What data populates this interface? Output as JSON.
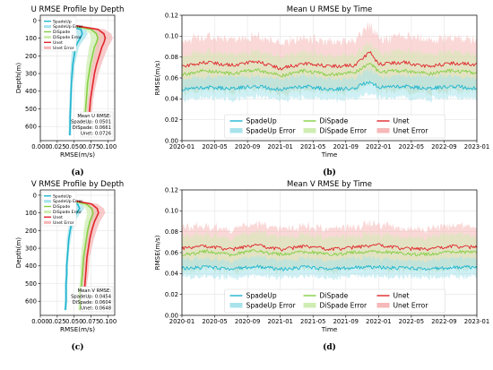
{
  "colors": {
    "SpadeUp": "#1fb5cf",
    "DiSpade": "#86cf45",
    "Unet": "#e0262c",
    "SpadeUp_band": "#a8e3ec",
    "DiSpade_band": "#cfedb3",
    "Unet_band": "#f6b8b8"
  },
  "chart_data": [
    {
      "id": "a",
      "panel_label": "(a)",
      "type": "line",
      "title": "U RMSE Profile by Depth",
      "xlabel": "RMSE(m/s)",
      "ylabel": "Depth(m)",
      "xlim": [
        0.0,
        0.11
      ],
      "ylim": [
        680,
        -30
      ],
      "xticks": [
        "0.000",
        "0.025",
        "0.050",
        "0.075",
        "0.100"
      ],
      "yticks": [
        "0",
        "100",
        "200",
        "300",
        "400",
        "500",
        "600"
      ],
      "grid": true,
      "legend": "upper-left",
      "legend_entries": [
        "SpadeUp",
        "SpadeUp Error",
        "DiSpade",
        "DiSpade Error",
        "Unet",
        "Unet Error"
      ],
      "annotation": [
        "Mean U RMSE:",
        "SpadeUp: 0.0501",
        "DiSpade: 0.0661",
        "Unet: 0.0726"
      ],
      "depth": [
        0,
        25,
        50,
        75,
        100,
        125,
        150,
        200,
        250,
        300,
        350,
        400,
        450,
        500,
        550,
        600,
        650
      ],
      "series": [
        {
          "name": "SpadeUp",
          "values": [
            0.003,
            0.032,
            0.06,
            0.062,
            0.059,
            0.055,
            0.052,
            0.05,
            0.048,
            0.047,
            0.046,
            0.0455,
            0.045,
            0.0445,
            0.044,
            0.044,
            0.0435
          ],
          "error": [
            0.0,
            0.004,
            0.008,
            0.008,
            0.007,
            0.006,
            0.005,
            0.004,
            0.003,
            0.003,
            0.002,
            0.002,
            0.002,
            0.002,
            0.002,
            0.002,
            0.002
          ]
        },
        {
          "name": "DiSpade",
          "values": [
            0.004,
            0.04,
            0.075,
            0.083,
            0.085,
            0.083,
            0.08,
            0.077,
            0.074,
            0.072,
            0.07,
            0.069,
            0.068,
            0.067,
            0.066,
            0.065,
            0.064
          ],
          "error": [
            0.0,
            0.005,
            0.009,
            0.01,
            0.01,
            0.009,
            0.008,
            0.007,
            0.006,
            0.005,
            0.004,
            0.004,
            0.003,
            0.003,
            0.003,
            0.003,
            0.003
          ]
        },
        {
          "name": "Unet",
          "values": [
            0.004,
            0.045,
            0.085,
            0.094,
            0.096,
            0.094,
            0.091,
            0.087,
            0.083,
            0.08,
            0.078,
            0.076,
            0.074,
            0.073,
            0.072,
            0.071,
            0.07
          ],
          "error": [
            0.0,
            0.005,
            0.01,
            0.011,
            0.011,
            0.01,
            0.009,
            0.008,
            0.007,
            0.006,
            0.005,
            0.004,
            0.004,
            0.004,
            0.003,
            0.003,
            0.003
          ]
        }
      ]
    },
    {
      "id": "b",
      "panel_label": "(b)",
      "type": "line",
      "title": "Mean U RMSE by Time",
      "xlabel": "Time",
      "ylabel": "RMSE(m/s)",
      "ylim": [
        0.0,
        0.12
      ],
      "xlim": [
        "2020-01",
        "2023-01"
      ],
      "xticks": [
        "2020-01",
        "2020-05",
        "2020-09",
        "2021-01",
        "2021-05",
        "2021-09",
        "2022-01",
        "2022-05",
        "2022-09",
        "2023-01"
      ],
      "yticks": [
        "0.00",
        "0.02",
        "0.04",
        "0.06",
        "0.08",
        "0.10",
        "0.12"
      ],
      "grid": true,
      "legend": "lower-center",
      "legend_entries": [
        "SpadeUp",
        "SpadeUp Error",
        "DiSpade",
        "DiSpade Error",
        "Unet",
        "Unet Error"
      ],
      "dates": [
        "2020-01",
        "2020-04",
        "2020-07",
        "2020-10",
        "2021-01",
        "2021-04",
        "2021-07",
        "2021-10",
        "2021-12",
        "2022-01",
        "2022-04",
        "2022-07",
        "2022-10",
        "2023-01"
      ],
      "series": [
        {
          "name": "SpadeUp",
          "values": [
            0.049,
            0.051,
            0.05,
            0.052,
            0.049,
            0.052,
            0.049,
            0.05,
            0.057,
            0.051,
            0.052,
            0.05,
            0.052,
            0.05
          ],
          "error": [
            0.01,
            0.01,
            0.011,
            0.01,
            0.01,
            0.011,
            0.01,
            0.01,
            0.012,
            0.01,
            0.01,
            0.011,
            0.01,
            0.01
          ]
        },
        {
          "name": "DiSpade",
          "values": [
            0.063,
            0.067,
            0.064,
            0.068,
            0.062,
            0.067,
            0.063,
            0.065,
            0.074,
            0.066,
            0.067,
            0.064,
            0.067,
            0.065
          ],
          "error": [
            0.018,
            0.019,
            0.018,
            0.019,
            0.018,
            0.019,
            0.018,
            0.018,
            0.02,
            0.018,
            0.019,
            0.018,
            0.019,
            0.018
          ]
        },
        {
          "name": "Unet",
          "values": [
            0.071,
            0.075,
            0.072,
            0.076,
            0.069,
            0.074,
            0.071,
            0.072,
            0.085,
            0.073,
            0.075,
            0.071,
            0.074,
            0.073
          ],
          "error": [
            0.024,
            0.025,
            0.024,
            0.025,
            0.024,
            0.025,
            0.024,
            0.024,
            0.027,
            0.024,
            0.025,
            0.024,
            0.025,
            0.024
          ]
        }
      ]
    },
    {
      "id": "c",
      "panel_label": "(c)",
      "type": "line",
      "title": "V RMSE Profile by Depth",
      "xlabel": "RMSE(m/s)",
      "ylabel": "Depth(m)",
      "xlim": [
        0.0,
        0.11
      ],
      "ylim": [
        680,
        -30
      ],
      "xticks": [
        "0.000",
        "0.025",
        "0.050",
        "0.075",
        "0.100"
      ],
      "yticks": [
        "0",
        "100",
        "200",
        "300",
        "400",
        "500",
        "600"
      ],
      "grid": true,
      "legend": "upper-left",
      "legend_entries": [
        "SpadeUp",
        "SpadeUp Error",
        "DiSpade",
        "DiSpade Error",
        "Unet",
        "Unet Error"
      ],
      "annotation": [
        "Mean V RMSE:",
        "SpadeUp: 0.0454",
        "DiSpade: 0.0604",
        "Unet: 0.0648"
      ],
      "depth": [
        0,
        25,
        50,
        75,
        100,
        125,
        150,
        200,
        250,
        300,
        350,
        400,
        450,
        500,
        550,
        600,
        650
      ],
      "series": [
        {
          "name": "SpadeUp",
          "values": [
            0.002,
            0.03,
            0.055,
            0.058,
            0.054,
            0.05,
            0.047,
            0.044,
            0.042,
            0.041,
            0.04,
            0.039,
            0.039,
            0.038,
            0.038,
            0.038,
            0.037
          ],
          "error": [
            0.0,
            0.004,
            0.007,
            0.007,
            0.006,
            0.005,
            0.004,
            0.003,
            0.003,
            0.002,
            0.002,
            0.002,
            0.002,
            0.002,
            0.002,
            0.002,
            0.002
          ]
        },
        {
          "name": "DiSpade",
          "values": [
            0.003,
            0.038,
            0.068,
            0.076,
            0.078,
            0.076,
            0.073,
            0.07,
            0.068,
            0.066,
            0.064,
            0.063,
            0.062,
            0.061,
            0.06,
            0.06,
            0.059
          ],
          "error": [
            0.0,
            0.005,
            0.008,
            0.009,
            0.009,
            0.008,
            0.007,
            0.006,
            0.005,
            0.005,
            0.004,
            0.004,
            0.003,
            0.003,
            0.003,
            0.003,
            0.003
          ]
        },
        {
          "name": "Unet",
          "values": [
            0.003,
            0.042,
            0.076,
            0.084,
            0.086,
            0.083,
            0.08,
            0.076,
            0.073,
            0.071,
            0.069,
            0.068,
            0.067,
            0.066,
            0.065,
            0.065,
            0.064
          ],
          "error": [
            0.0,
            0.005,
            0.009,
            0.01,
            0.01,
            0.009,
            0.008,
            0.007,
            0.006,
            0.005,
            0.004,
            0.004,
            0.004,
            0.003,
            0.003,
            0.003,
            0.003
          ]
        }
      ]
    },
    {
      "id": "d",
      "panel_label": "(d)",
      "type": "line",
      "title": "Mean V RMSE by Time",
      "xlabel": "Time",
      "ylabel": "RMSE(m/s)",
      "ylim": [
        0.0,
        0.12
      ],
      "xlim": [
        "2020-01",
        "2023-01"
      ],
      "xticks": [
        "2020-01",
        "2020-05",
        "2020-09",
        "2021-01",
        "2021-05",
        "2021-09",
        "2022-01",
        "2022-05",
        "2022-09",
        "2023-01"
      ],
      "yticks": [
        "0.00",
        "0.02",
        "0.04",
        "0.06",
        "0.08",
        "0.10",
        "0.12"
      ],
      "grid": true,
      "legend": "lower-center",
      "legend_entries": [
        "SpadeUp",
        "SpadeUp Error",
        "DiSpade",
        "DiSpade Error",
        "Unet",
        "Unet Error"
      ],
      "dates": [
        "2020-01",
        "2020-04",
        "2020-07",
        "2020-10",
        "2021-01",
        "2021-04",
        "2021-07",
        "2021-10",
        "2022-01",
        "2022-04",
        "2022-07",
        "2022-10",
        "2023-01"
      ],
      "series": [
        {
          "name": "SpadeUp",
          "values": [
            0.045,
            0.046,
            0.044,
            0.047,
            0.044,
            0.046,
            0.044,
            0.046,
            0.046,
            0.045,
            0.044,
            0.046,
            0.046
          ],
          "error": [
            0.008,
            0.009,
            0.008,
            0.009,
            0.008,
            0.009,
            0.008,
            0.009,
            0.009,
            0.008,
            0.008,
            0.009,
            0.009
          ]
        },
        {
          "name": "DiSpade",
          "values": [
            0.058,
            0.061,
            0.058,
            0.062,
            0.058,
            0.061,
            0.058,
            0.06,
            0.061,
            0.059,
            0.058,
            0.061,
            0.06
          ],
          "error": [
            0.016,
            0.017,
            0.016,
            0.017,
            0.016,
            0.017,
            0.016,
            0.016,
            0.017,
            0.016,
            0.016,
            0.017,
            0.016
          ]
        },
        {
          "name": "Unet",
          "values": [
            0.064,
            0.066,
            0.063,
            0.067,
            0.063,
            0.066,
            0.063,
            0.065,
            0.067,
            0.064,
            0.063,
            0.066,
            0.065
          ],
          "error": [
            0.019,
            0.02,
            0.019,
            0.02,
            0.019,
            0.02,
            0.019,
            0.02,
            0.021,
            0.019,
            0.019,
            0.02,
            0.02
          ]
        }
      ]
    }
  ]
}
